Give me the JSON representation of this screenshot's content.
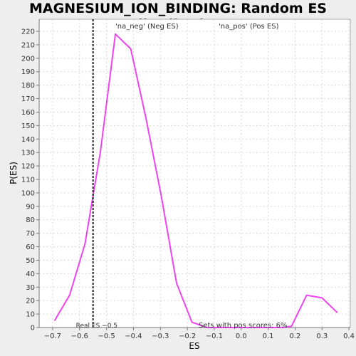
{
  "chart_data": {
    "type": "line",
    "title": "MAGNESIUM_ION_BINDING: Random ES distribution",
    "xlabel": "ES",
    "ylabel": "P(ES)",
    "xlim": [
      -0.75,
      0.405
    ],
    "ylim": [
      0,
      229
    ],
    "x_ticks": [
      -0.7,
      -0.6,
      -0.5,
      -0.4,
      -0.3,
      -0.2,
      -0.1,
      0.0,
      0.1,
      0.2,
      0.3,
      0.4
    ],
    "x_tick_labels": [
      "−0.7",
      "−0.6",
      "−0.5",
      "−0.4",
      "−0.3",
      "−0.2",
      "−0.1",
      "0.0",
      "0.1",
      "0.2",
      "0.3",
      "0.4"
    ],
    "y_ticks": [
      0,
      10,
      20,
      30,
      40,
      50,
      60,
      70,
      80,
      90,
      100,
      110,
      120,
      130,
      140,
      150,
      160,
      170,
      180,
      190,
      200,
      210,
      220
    ],
    "grid": true,
    "series": [
      {
        "name": "",
        "color": "#ee44ee",
        "x": [
          -0.693,
          -0.637,
          -0.58,
          -0.523,
          -0.467,
          -0.41,
          -0.353,
          -0.297,
          -0.24,
          -0.183,
          -0.127,
          -0.07,
          -0.013,
          0.043,
          0.1,
          0.157,
          0.187,
          0.243,
          0.3,
          0.357
        ],
        "y": [
          5,
          24,
          62,
          130,
          218,
          207,
          155,
          98,
          33,
          4,
          0,
          0,
          0,
          0,
          0,
          0,
          1,
          24,
          22,
          11
        ]
      }
    ],
    "legend": [
      {
        "label": "'na_neg' (Neg ES)",
        "color": "#3333cc"
      },
      {
        "label": "'na_pos' (Pos ES)",
        "color": "#dd3333"
      }
    ],
    "real_es": {
      "value": -0.55,
      "label": "Real ES −0.5"
    },
    "annotation": "Sets with pos scores: 6%"
  }
}
